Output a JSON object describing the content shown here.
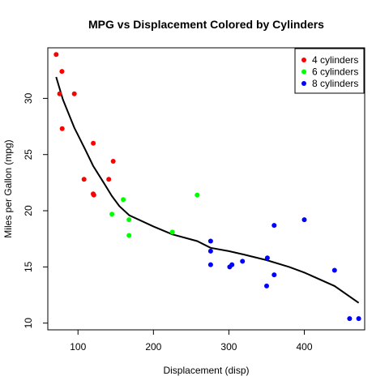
{
  "chart_data": {
    "type": "scatter",
    "title": "MPG vs Displacement Colored by Cylinders",
    "xlabel": "Displacement (disp)",
    "ylabel": "Miles per Gallon (mpg)",
    "xlim": [
      60,
      480
    ],
    "ylim": [
      9.4,
      34.5
    ],
    "xticks": [
      100,
      200,
      300,
      400
    ],
    "yticks": [
      10,
      15,
      20,
      25,
      30
    ],
    "grid": false,
    "legend_position": "top-right",
    "series": [
      {
        "name": "4 cylinders",
        "color": "#ff0000",
        "points": [
          [
            71.1,
            33.9
          ],
          [
            75.7,
            30.4
          ],
          [
            78.7,
            32.4
          ],
          [
            79.0,
            27.3
          ],
          [
            95.1,
            30.4
          ],
          [
            108.0,
            22.8
          ],
          [
            120.1,
            21.5
          ],
          [
            120.3,
            26.0
          ],
          [
            121.0,
            21.4
          ],
          [
            140.8,
            22.8
          ],
          [
            146.7,
            24.4
          ]
        ]
      },
      {
        "name": "6 cylinders",
        "color": "#00ff00",
        "points": [
          [
            145.0,
            19.7
          ],
          [
            160.0,
            21.0
          ],
          [
            167.6,
            19.2
          ],
          [
            167.6,
            17.8
          ],
          [
            225.0,
            18.1
          ],
          [
            258.0,
            21.4
          ]
        ]
      },
      {
        "name": "8 cylinders",
        "color": "#0000ff",
        "points": [
          [
            275.8,
            16.4
          ],
          [
            275.8,
            17.3
          ],
          [
            275.8,
            15.2
          ],
          [
            301.0,
            15.0
          ],
          [
            304.0,
            15.2
          ],
          [
            318.0,
            15.5
          ],
          [
            350.0,
            13.3
          ],
          [
            351.0,
            15.8
          ],
          [
            360.0,
            18.7
          ],
          [
            360.0,
            14.3
          ],
          [
            400.0,
            19.2
          ],
          [
            440.0,
            14.7
          ],
          [
            460.0,
            10.4
          ],
          [
            472.0,
            10.4
          ]
        ]
      }
    ],
    "trend_line": {
      "color": "#000000",
      "points": [
        [
          71.1,
          31.9
        ],
        [
          80,
          29.9
        ],
        [
          95,
          27.4
        ],
        [
          110,
          25.4
        ],
        [
          120,
          24.0
        ],
        [
          135,
          22.4
        ],
        [
          145,
          21.3
        ],
        [
          155,
          20.4
        ],
        [
          168,
          19.6
        ],
        [
          200,
          18.6
        ],
        [
          225,
          17.9
        ],
        [
          258,
          17.3
        ],
        [
          275.8,
          16.7
        ],
        [
          300,
          16.4
        ],
        [
          320,
          16.1
        ],
        [
          350,
          15.6
        ],
        [
          380,
          15.0
        ],
        [
          400,
          14.5
        ],
        [
          440,
          13.3
        ],
        [
          472,
          11.8
        ]
      ]
    }
  }
}
